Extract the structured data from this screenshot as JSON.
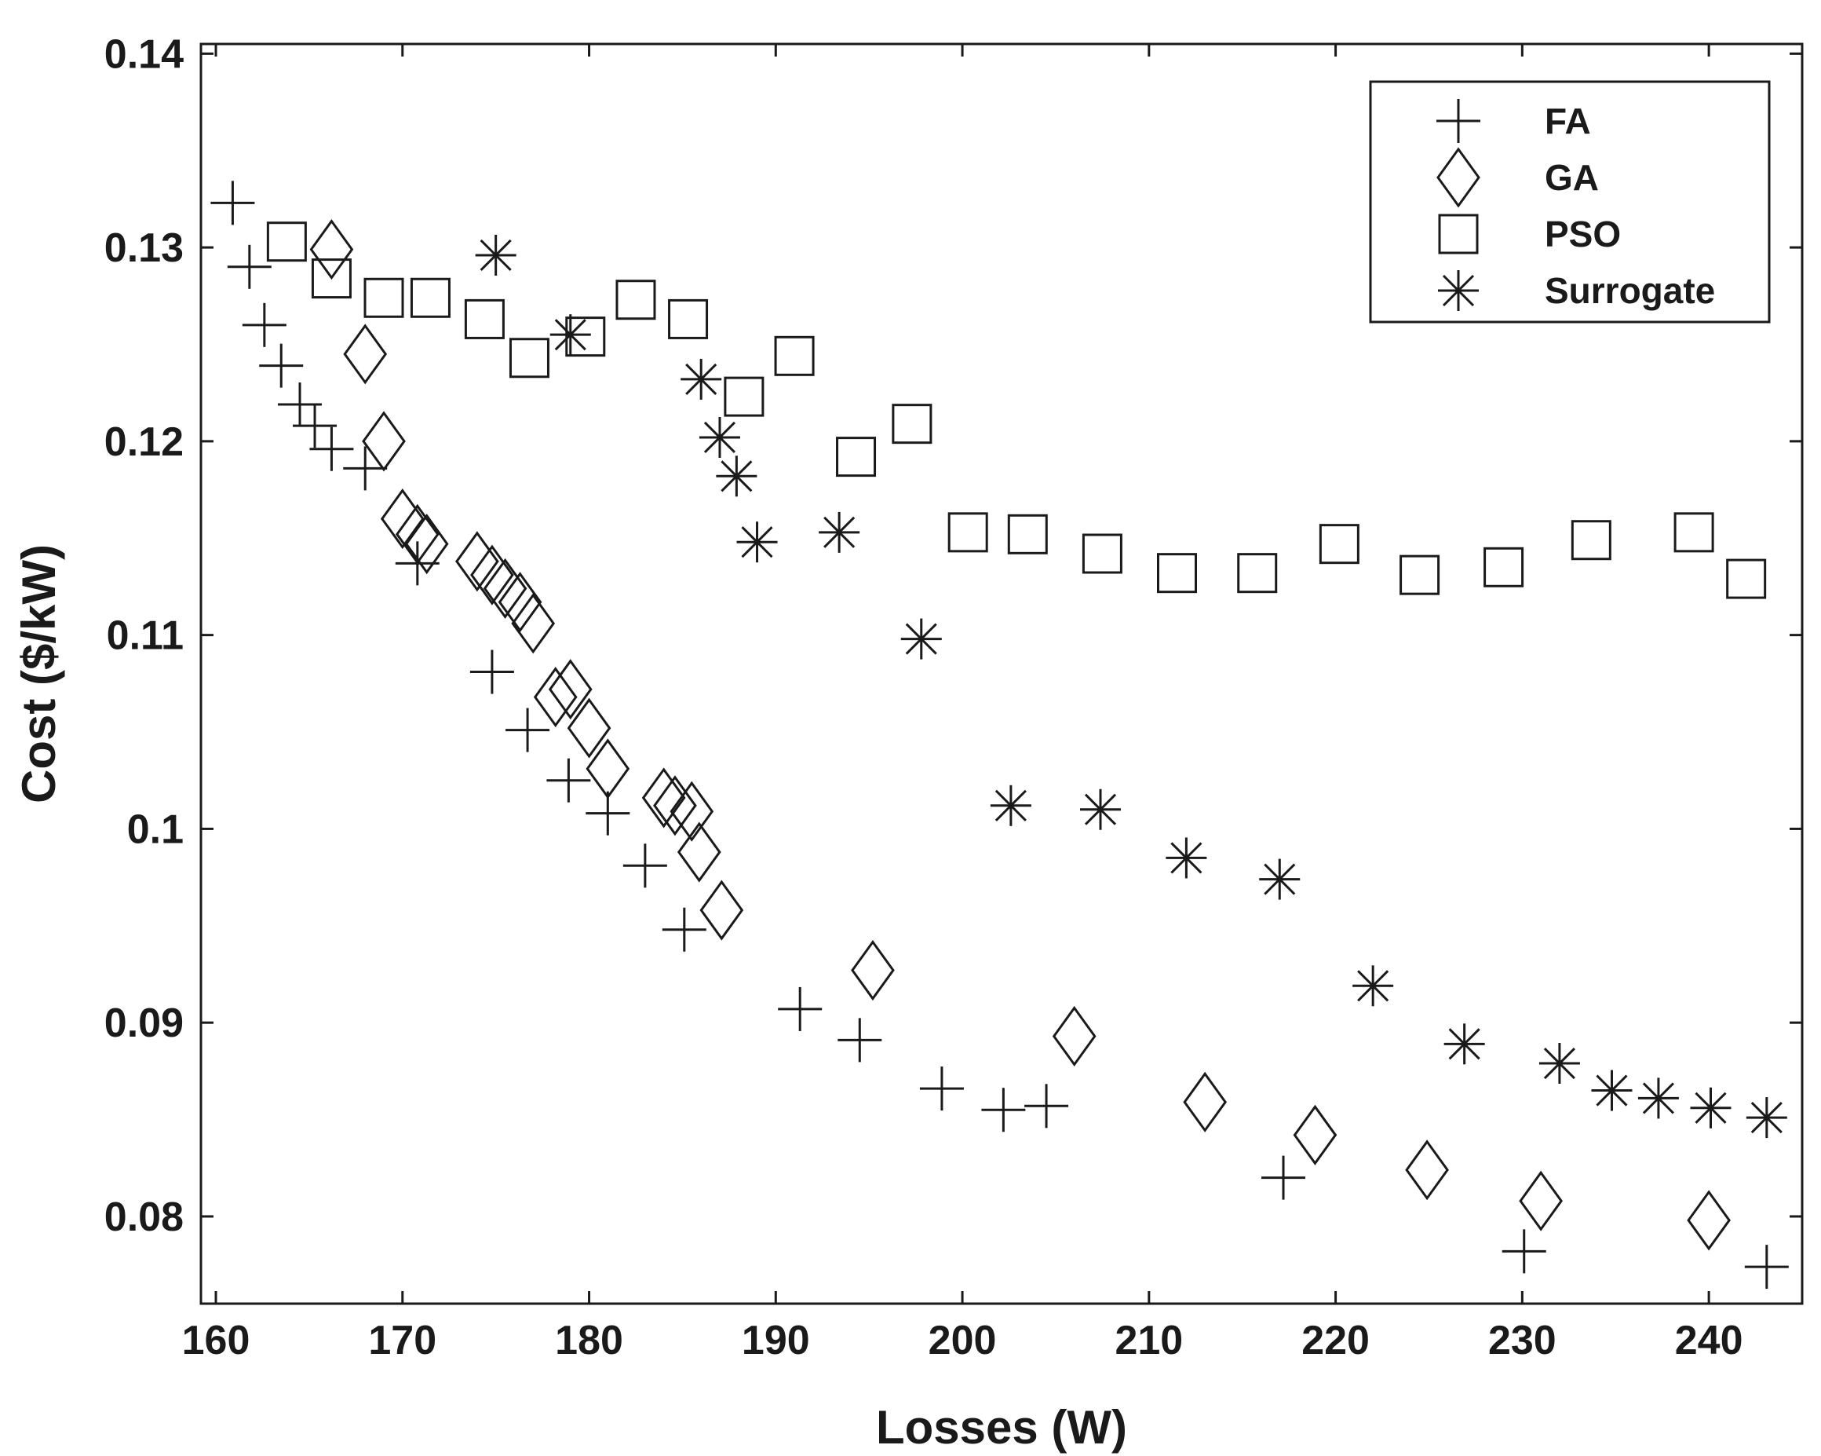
{
  "chart_data": {
    "type": "scatter",
    "title": "",
    "xlabel": "Losses (W)",
    "ylabel": "Cost ($/kW)",
    "xlim": [
      159.2,
      245.0
    ],
    "ylim": [
      0.0755,
      0.1405
    ],
    "xticks": [
      160,
      170,
      180,
      190,
      200,
      210,
      220,
      230,
      240
    ],
    "yticks": [
      0.08,
      0.09,
      0.1,
      0.11,
      0.12,
      0.13,
      0.14
    ],
    "xtick_labels": [
      "160",
      "170",
      "180",
      "190",
      "200",
      "210",
      "220",
      "230",
      "240"
    ],
    "ytick_labels": [
      "0.08",
      "0.09",
      "0.1",
      "0.11",
      "0.12",
      "0.13",
      "0.14"
    ],
    "grid": false,
    "legend_position": "top-right",
    "series": [
      {
        "name": "FA",
        "marker": "plus",
        "color": "#1a1a1a",
        "x": [
          160.9,
          161.8,
          162.6,
          163.5,
          164.5,
          165.3,
          166.2,
          168.0,
          170.8,
          174.8,
          176.7,
          178.9,
          181.0,
          183.0,
          185.1,
          191.3,
          194.5,
          198.9,
          202.2,
          204.5,
          217.2,
          230.1,
          243.1
        ],
        "y": [
          0.1323,
          0.129,
          0.126,
          0.1239,
          0.1219,
          0.1208,
          0.1196,
          0.1186,
          0.1137,
          0.1081,
          0.1051,
          0.1025,
          0.1008,
          0.0981,
          0.0948,
          0.0907,
          0.0891,
          0.0866,
          0.0855,
          0.0857,
          0.082,
          0.0782,
          0.0774
        ]
      },
      {
        "name": "GA",
        "marker": "diamond",
        "color": "#1a1a1a",
        "x": [
          166.2,
          168.0,
          169.0,
          170.0,
          170.8,
          171.3,
          174.0,
          174.8,
          175.5,
          176.3,
          177.0,
          178.2,
          179.0,
          180.0,
          181.0,
          184.0,
          184.6,
          185.5,
          185.9,
          187.1,
          195.2,
          206.0,
          213.0,
          218.9,
          224.9,
          231.0,
          240.0
        ],
        "y": [
          0.1299,
          0.1245,
          0.12,
          0.116,
          0.1152,
          0.1147,
          0.1138,
          0.1131,
          0.1124,
          0.1117,
          0.1106,
          0.1068,
          0.1072,
          0.1052,
          0.1031,
          0.1016,
          0.1012,
          0.1009,
          0.0988,
          0.0958,
          0.0927,
          0.0893,
          0.0859,
          0.0842,
          0.0824,
          0.0808,
          0.0798
        ]
      },
      {
        "name": "PSO",
        "marker": "square",
        "color": "#1a1a1a",
        "x": [
          163.8,
          166.2,
          169.0,
          171.5,
          174.4,
          176.8,
          179.8,
          182.5,
          185.3,
          188.3,
          191.0,
          194.3,
          197.3,
          200.3,
          203.5,
          207.5,
          211.5,
          215.8,
          220.2,
          224.5,
          229.0,
          233.7,
          239.2,
          242.0
        ],
        "y": [
          0.1303,
          0.1284,
          0.1274,
          0.1274,
          0.1263,
          0.1243,
          0.1254,
          0.1273,
          0.1263,
          0.1223,
          0.1244,
          0.1192,
          0.1209,
          0.1153,
          0.1152,
          0.1142,
          0.1132,
          0.1132,
          0.1147,
          0.1131,
          0.1135,
          0.1149,
          0.1153,
          0.1129
        ]
      },
      {
        "name": "Surrogate",
        "marker": "asterisk",
        "color": "#1a1a1a",
        "x": [
          175.0,
          179.0,
          186.0,
          187.0,
          187.9,
          189.0,
          193.4,
          197.8,
          202.6,
          207.4,
          212.0,
          217.0,
          222.0,
          226.9,
          232.0,
          234.8,
          237.3,
          240.1,
          243.1
        ],
        "y": [
          0.1296,
          0.1255,
          0.1232,
          0.1202,
          0.1182,
          0.1148,
          0.1153,
          0.1098,
          0.1012,
          0.101,
          0.0985,
          0.0974,
          0.0919,
          0.0889,
          0.0879,
          0.0865,
          0.0861,
          0.0856,
          0.0851
        ]
      }
    ]
  }
}
